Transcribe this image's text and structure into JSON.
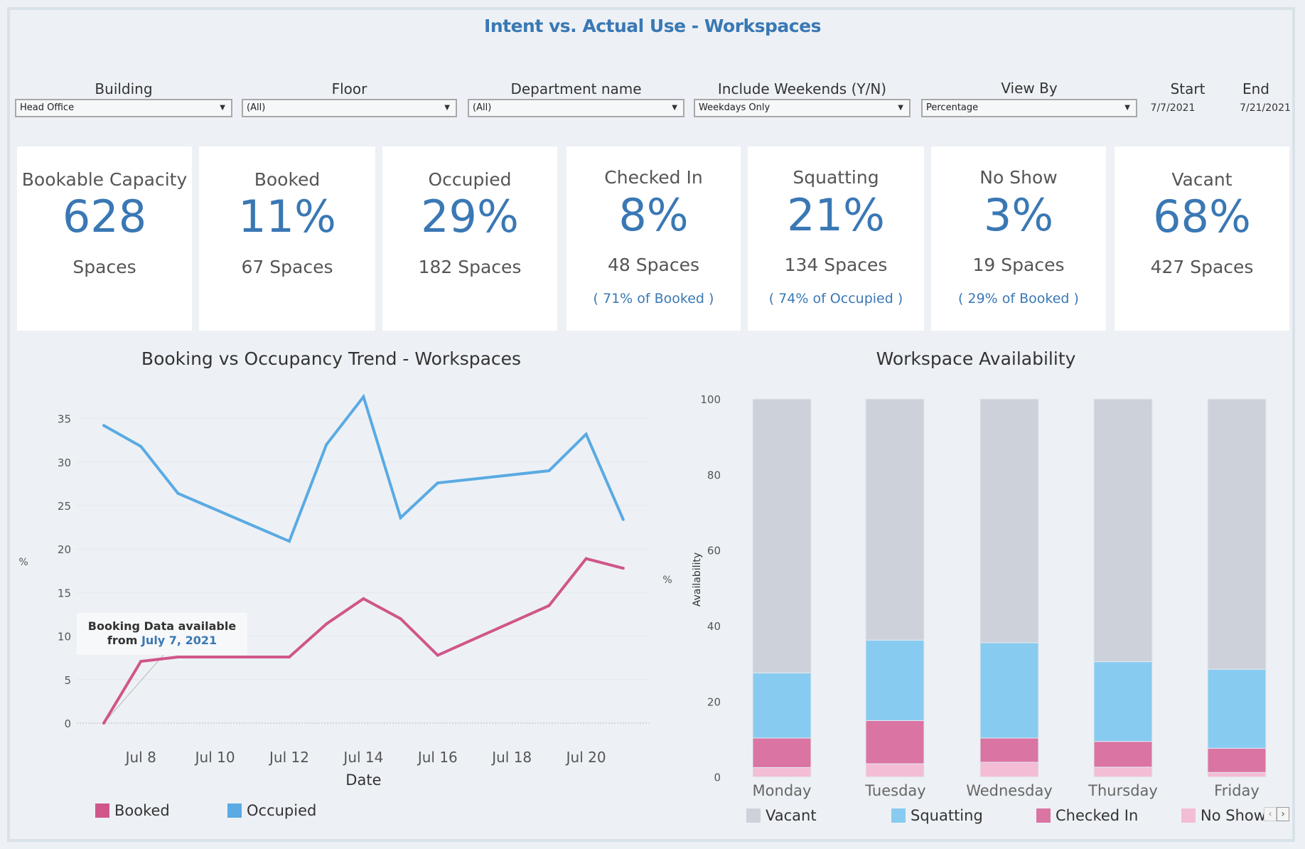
{
  "header": {
    "title": "Intent vs. Actual Use - Workspaces"
  },
  "filters": [
    {
      "label": "Building",
      "value": "Head Office"
    },
    {
      "label": "Floor",
      "value": "(All)"
    },
    {
      "label": "Department name",
      "value": "(All)"
    },
    {
      "label": "Include Weekends (Y/N)",
      "value": "Weekdays Only"
    },
    {
      "label": "View By",
      "value": "Percentage"
    }
  ],
  "dates": {
    "start_label": "Start",
    "start_value": "7/7/2021",
    "end_label": "End",
    "end_value": "7/21/2021"
  },
  "kpis": [
    {
      "title": "Bookable Capacity",
      "value": "628",
      "spaces": "Spaces",
      "pct_of": ""
    },
    {
      "title": "Booked",
      "value": "11%",
      "spaces": "67 Spaces",
      "pct_of": ""
    },
    {
      "title": "Occupied",
      "value": "29%",
      "spaces": "182 Spaces",
      "pct_of": ""
    },
    {
      "title": "Checked In",
      "value": "8%",
      "spaces": "48 Spaces",
      "pct_of": "( 71% of Booked )"
    },
    {
      "title": "Squatting",
      "value": "21%",
      "spaces": "134 Spaces",
      "pct_of": "( 74% of Occupied )"
    },
    {
      "title": "No Show",
      "value": "3%",
      "spaces": "19 Spaces",
      "pct_of": "( 29% of Booked )"
    },
    {
      "title": "Vacant",
      "value": "68%",
      "spaces": "427 Spaces",
      "pct_of": ""
    }
  ],
  "annotation": {
    "line1": "Booking Data available",
    "line2_prefix": "from ",
    "line2_date": "July 7, 2021"
  },
  "pager": {
    "prev_icon": "‹",
    "next_icon": "›"
  },
  "colors": {
    "title": "#3a78b4",
    "booked": "#d0568a",
    "occupied": "#5aaae3",
    "vacant": "#cdd2da",
    "squatting": "#88cbf0",
    "checked_in": "#da74a2",
    "no_show": "#f3bdd6"
  },
  "chart_data": [
    {
      "type": "line",
      "title": "Booking vs Occupancy Trend - Workspaces",
      "xlabel": "Date",
      "ylabel": "%",
      "ylim": [
        0,
        37.5
      ],
      "yticks": [
        0,
        5,
        10,
        15,
        20,
        25,
        30,
        35
      ],
      "xtick_labels": [
        "Jul 8",
        "Jul 10",
        "Jul 12",
        "Jul 14",
        "Jul 16",
        "Jul 18",
        "Jul 20"
      ],
      "xtick_days": [
        8,
        10,
        12,
        14,
        16,
        18,
        20
      ],
      "xrange_days": [
        7,
        21
      ],
      "grid": true,
      "legend": "bottom-left",
      "x_days": [
        7,
        8,
        9,
        12,
        13,
        14,
        15,
        16,
        19,
        20,
        21
      ],
      "series": [
        {
          "name": "Booked",
          "values": [
            0,
            7.1,
            7.6,
            7.6,
            11.4,
            14.3,
            12.0,
            7.8,
            13.5,
            18.9,
            17.8
          ]
        },
        {
          "name": "Occupied",
          "values": [
            34.2,
            31.8,
            26.4,
            20.9,
            32.0,
            37.5,
            23.6,
            27.6,
            29.0,
            33.2,
            23.4
          ]
        }
      ]
    },
    {
      "type": "bar",
      "stacked": true,
      "title": "Workspace Availability",
      "xlabel": "",
      "ylabel": "Availability",
      "ylabel_unit": "%",
      "ylim": [
        0,
        100
      ],
      "yticks": [
        0,
        20,
        40,
        60,
        80,
        100
      ],
      "categories": [
        "Monday",
        "Tuesday",
        "Wednesday",
        "Thursday",
        "Friday"
      ],
      "legend": "bottom",
      "series": [
        {
          "name": "Vacant",
          "values": [
            72.5,
            63.8,
            64.5,
            69.5,
            71.5
          ]
        },
        {
          "name": "Squatting",
          "values": [
            17.2,
            21.3,
            25.2,
            21.1,
            20.9
          ]
        },
        {
          "name": "Checked In",
          "values": [
            7.8,
            11.4,
            6.4,
            6.8,
            6.4
          ]
        },
        {
          "name": "No Show",
          "values": [
            2.5,
            3.5,
            3.9,
            2.6,
            1.2
          ]
        }
      ]
    }
  ]
}
